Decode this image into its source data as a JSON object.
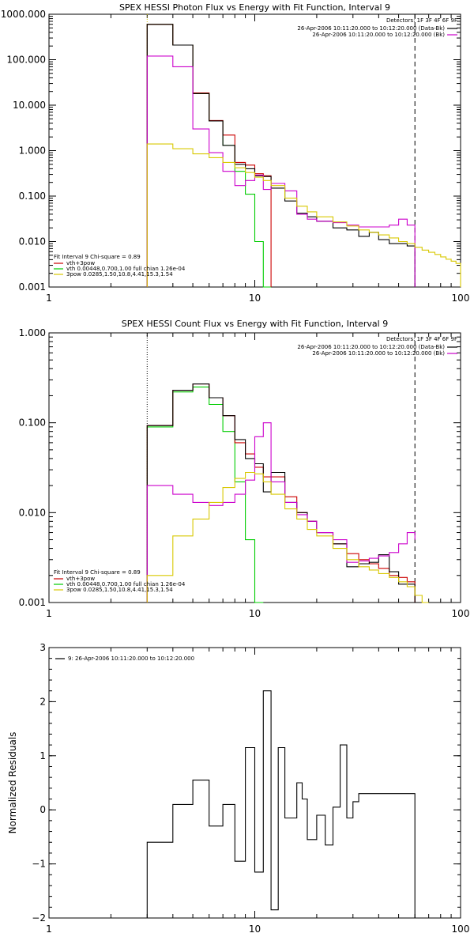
{
  "colors": {
    "total": "#000000",
    "fit_sum": "#cc0000",
    "thermal": "#00cc00",
    "powerlaw": "#d8c800",
    "background": "#cc00cc",
    "axis": "#000000"
  },
  "chart_data": [
    {
      "type": "line",
      "title": "SPEX HESSI Photon Flux vs Energy with Fit Function, Interval 9",
      "xlabel": "",
      "ylabel": "",
      "x_scale": "log",
      "y_scale": "log",
      "xlim": [
        1,
        100
      ],
      "ylim": [
        0.001,
        1000
      ],
      "x_ticks": [
        {
          "v": 1,
          "label": "1"
        },
        {
          "v": 10,
          "label": "10"
        },
        {
          "v": 100,
          "label": "100"
        }
      ],
      "y_ticks": [
        {
          "v": 0.001,
          "label": "0.001"
        },
        {
          "v": 0.01,
          "label": "0.010"
        },
        {
          "v": 0.1,
          "label": "0.100"
        },
        {
          "v": 1,
          "label": "1.000"
        },
        {
          "v": 10,
          "label": "10.000"
        },
        {
          "v": 100,
          "label": "100.000"
        },
        {
          "v": 1000,
          "label": "1000.000"
        }
      ],
      "vlines": [
        {
          "x": 3,
          "style": "dotted",
          "color": "powerlaw"
        },
        {
          "x": 60,
          "style": "dashed",
          "color": "total"
        }
      ],
      "legend_top_right": {
        "header": "Detectors: 1F 3F 4F 6F 9F",
        "items": [
          {
            "text": "26-Apr-2006 10:11:20.000 to 10:12:20.000 (Data-Bk)",
            "color": "total"
          },
          {
            "text": "26-Apr-2006 10:11:20.000 to 10:12:20.000 (Bk)",
            "color": "background"
          }
        ]
      },
      "legend_bottom_left": {
        "header": "Fit Interval 9   Chi-square = 0.89",
        "items": [
          {
            "text": "vth+3pow",
            "color": "fit_sum"
          },
          {
            "text": "vth 0.00448,0.700,1.00   full chian 1.26e-04",
            "color": "thermal"
          },
          {
            "text": "3pow 0.0285,1.50,10.8,4.41,15.3,1.54",
            "color": "powerlaw"
          }
        ]
      },
      "series": [
        {
          "color": "thermal",
          "edges": [
            3,
            4,
            5,
            6,
            7,
            8,
            9,
            10,
            11,
            12
          ],
          "values": [
            600,
            210,
            18,
            4.5,
            1.3,
            0.35,
            0.11,
            0.01,
            0.0005
          ]
        },
        {
          "color": "fit_sum",
          "edges": [
            3,
            4,
            5,
            6,
            7,
            8,
            9,
            10,
            11,
            12
          ],
          "values": [
            600,
            210,
            18.5,
            4.6,
            2.2,
            0.55,
            0.48,
            0.31,
            0.28
          ]
        },
        {
          "color": "total",
          "edges": [
            3,
            4,
            5,
            6,
            7,
            8,
            9,
            10,
            11,
            12,
            14,
            16,
            18,
            20,
            24,
            28,
            32,
            36,
            40,
            45,
            50,
            55,
            60
          ],
          "values": [
            600,
            210,
            18,
            4.5,
            1.3,
            0.5,
            0.4,
            0.28,
            0.27,
            0.15,
            0.078,
            0.042,
            0.035,
            0.028,
            0.02,
            0.018,
            0.013,
            0.016,
            0.011,
            0.009,
            0.009,
            0.008
          ]
        },
        {
          "color": "background",
          "edges": [
            3,
            4,
            5,
            6,
            7,
            8,
            9,
            10,
            11,
            12,
            14,
            16,
            18,
            20,
            24,
            28,
            32,
            36,
            40,
            45,
            50,
            55,
            60
          ],
          "values": [
            120,
            70,
            3,
            0.9,
            0.35,
            0.17,
            0.22,
            0.29,
            0.14,
            0.19,
            0.13,
            0.04,
            0.031,
            0.028,
            0.026,
            0.023,
            0.021,
            0.021,
            0.021,
            0.023,
            0.031,
            0.023
          ]
        },
        {
          "color": "powerlaw",
          "edges": [
            3,
            4,
            5,
            6,
            7,
            8,
            9,
            10,
            11,
            12,
            14,
            16,
            18,
            20,
            24,
            28,
            32,
            36,
            40,
            45,
            50,
            55,
            60,
            65,
            70,
            75,
            80,
            85,
            90,
            95,
            100
          ],
          "values": [
            1.4,
            1.1,
            0.85,
            0.7,
            0.55,
            0.42,
            0.33,
            0.26,
            0.22,
            0.17,
            0.09,
            0.06,
            0.045,
            0.035,
            0.027,
            0.022,
            0.018,
            0.016,
            0.014,
            0.012,
            0.01,
            0.009,
            0.0075,
            0.0065,
            0.0058,
            0.0052,
            0.0046,
            0.0041,
            0.0037,
            0.0033
          ]
        }
      ]
    },
    {
      "type": "line",
      "title": "SPEX HESSI Count Flux vs Energy with Fit Function, Interval 9",
      "xlabel": "",
      "ylabel": "",
      "x_scale": "log",
      "y_scale": "log",
      "xlim": [
        1,
        100
      ],
      "ylim": [
        0.001,
        1
      ],
      "x_ticks": [
        {
          "v": 1,
          "label": "1"
        },
        {
          "v": 10,
          "label": "10"
        },
        {
          "v": 100,
          "label": "100"
        }
      ],
      "y_ticks": [
        {
          "v": 0.001,
          "label": "0.001"
        },
        {
          "v": 0.01,
          "label": "0.010"
        },
        {
          "v": 0.1,
          "label": "0.100"
        },
        {
          "v": 1,
          "label": "1.000"
        }
      ],
      "vlines": [
        {
          "x": 3,
          "style": "dotted",
          "color": "total"
        },
        {
          "x": 60,
          "style": "dashed",
          "color": "total"
        }
      ],
      "legend_top_right": {
        "header": "Detectors: 1F 3F 4F 6F 9F",
        "items": [
          {
            "text": "26-Apr-2006 10:11:20.000 to 10:12:20.000 (Data-Bk)",
            "color": "total"
          },
          {
            "text": "26-Apr-2006 10:11:20.000 to 10:12:20.000 (Bk)",
            "color": "background"
          }
        ]
      },
      "legend_bottom_left": {
        "header": "Fit Interval 9   Chi-square = 0.89",
        "items": [
          {
            "text": "vth+3pow",
            "color": "fit_sum"
          },
          {
            "text": "vth 0.00448,0.700,1.00   full chian 1.26e-04",
            "color": "thermal"
          },
          {
            "text": "3pow 0.0285,1.50,10.8,4.41,15.3,1.54",
            "color": "powerlaw"
          }
        ]
      },
      "series": [
        {
          "color": "thermal",
          "edges": [
            3,
            4,
            5,
            6,
            7,
            8,
            9,
            10,
            11
          ],
          "values": [
            0.09,
            0.22,
            0.25,
            0.16,
            0.08,
            0.022,
            0.005,
            0.0005
          ]
        },
        {
          "color": "fit_sum",
          "edges": [
            3,
            4,
            5,
            6,
            7,
            8,
            9,
            10,
            11,
            12,
            14,
            16,
            18,
            20,
            24,
            28,
            32,
            36,
            40,
            45,
            50,
            55,
            60
          ],
          "values": [
            0.093,
            0.23,
            0.27,
            0.19,
            0.12,
            0.06,
            0.045,
            0.032,
            0.025,
            0.025,
            0.015,
            0.01,
            0.008,
            0.006,
            0.0045,
            0.0035,
            0.003,
            0.0027,
            0.0024,
            0.002,
            0.0019,
            0.0017
          ]
        },
        {
          "color": "total",
          "edges": [
            3,
            4,
            5,
            6,
            7,
            8,
            9,
            10,
            11,
            12,
            14,
            16,
            18,
            20,
            24,
            28,
            32,
            36,
            40,
            45,
            50,
            55,
            60
          ],
          "values": [
            0.093,
            0.23,
            0.27,
            0.19,
            0.12,
            0.065,
            0.04,
            0.035,
            0.017,
            0.028,
            0.013,
            0.01,
            0.008,
            0.006,
            0.0045,
            0.0025,
            0.0027,
            0.0028,
            0.0034,
            0.0022,
            0.0016,
            0.0016
          ]
        },
        {
          "color": "background",
          "edges": [
            3,
            4,
            5,
            6,
            7,
            8,
            9,
            10,
            11,
            12,
            14,
            16,
            18,
            20,
            24,
            28,
            32,
            36,
            40,
            45,
            50,
            55,
            60
          ],
          "values": [
            0.02,
            0.016,
            0.013,
            0.012,
            0.013,
            0.016,
            0.023,
            0.07,
            0.1,
            0.022,
            0.013,
            0.0095,
            0.008,
            0.006,
            0.005,
            0.0028,
            0.0029,
            0.0031,
            0.0033,
            0.0036,
            0.0045,
            0.006,
            0.005
          ]
        },
        {
          "color": "powerlaw",
          "edges": [
            3,
            4,
            5,
            6,
            7,
            8,
            9,
            10,
            11,
            12,
            14,
            16,
            18,
            20,
            24,
            28,
            32,
            36,
            40,
            45,
            50,
            55,
            60,
            65,
            70
          ],
          "values": [
            0.002,
            0.0055,
            0.0085,
            0.013,
            0.019,
            0.024,
            0.028,
            0.027,
            0.022,
            0.016,
            0.011,
            0.0085,
            0.0065,
            0.0055,
            0.004,
            0.003,
            0.0025,
            0.0023,
            0.0021,
            0.0019,
            0.0017,
            0.0015,
            0.0012,
            0.001
          ]
        }
      ]
    },
    {
      "type": "line",
      "title": "",
      "xlabel": "",
      "ylabel": "Normalized Residuals",
      "x_scale": "log",
      "y_scale": "linear",
      "xlim": [
        1,
        100
      ],
      "ylim": [
        -2.0,
        3.0
      ],
      "x_ticks": [
        {
          "v": 1,
          "label": "1"
        },
        {
          "v": 10,
          "label": "10"
        },
        {
          "v": 100,
          "label": "100"
        }
      ],
      "y_ticks": [
        {
          "v": -2,
          "label": "−2"
        },
        {
          "v": -1,
          "label": "−1"
        },
        {
          "v": 0,
          "label": "0"
        },
        {
          "v": 1,
          "label": "1"
        },
        {
          "v": 2,
          "label": "2"
        },
        {
          "v": 3,
          "label": "3"
        }
      ],
      "vlines": [],
      "legend_top_left": {
        "items": [
          {
            "text": "9: 26-Apr-2006 10:11:20.000 to 10:12:20.000",
            "color": "total"
          }
        ]
      },
      "series": [
        {
          "color": "total",
          "edges": [
            3,
            4,
            5,
            6,
            7,
            8,
            9,
            10,
            11,
            12,
            13,
            14,
            15,
            16,
            17,
            18,
            19,
            20,
            22,
            24,
            26,
            28,
            30,
            32,
            36,
            40,
            44,
            48,
            52,
            56,
            60
          ],
          "values": [
            -0.6,
            0.1,
            0.55,
            -0.3,
            0.1,
            -0.95,
            1.15,
            -1.15,
            2.2,
            -1.85,
            1.15,
            -0.15,
            -0.15,
            0.5,
            0.2,
            -0.55,
            -0.55,
            -0.1,
            -0.65,
            0.05,
            1.2,
            -0.15,
            0.15,
            0.3,
            0.3,
            0.3,
            0.3,
            0.3,
            0.3,
            0.3
          ]
        }
      ]
    }
  ]
}
